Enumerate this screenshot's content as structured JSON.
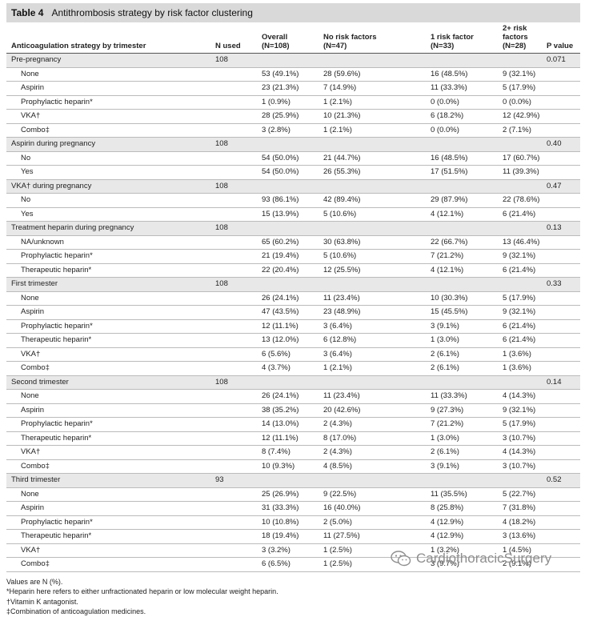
{
  "table": {
    "label": "Table 4",
    "title": "Antithrombosis strategy by risk factor clustering",
    "headers": [
      [
        "Anticoagulation strategy by trimester"
      ],
      [
        "N used"
      ],
      [
        "Overall",
        "(N=108)"
      ],
      [
        "No risk factors",
        "(N=47)"
      ],
      [
        "1 risk factor",
        "(N=33)"
      ],
      [
        "2+ risk factors",
        "(N=28)"
      ],
      [
        "P value"
      ]
    ],
    "rows": [
      {
        "section": true,
        "cells": [
          "Pre-pregnancy",
          "108",
          "",
          "",
          "",
          "",
          "0.071"
        ]
      },
      {
        "section": false,
        "cells": [
          "None",
          "",
          "53 (49.1%)",
          "28 (59.6%)",
          "16 (48.5%)",
          "9 (32.1%)",
          ""
        ]
      },
      {
        "section": false,
        "cells": [
          "Aspirin",
          "",
          "23 (21.3%)",
          "7 (14.9%)",
          "11 (33.3%)",
          "5 (17.9%)",
          ""
        ]
      },
      {
        "section": false,
        "cells": [
          "Prophylactic heparin*",
          "",
          "1 (0.9%)",
          "1 (2.1%)",
          "0 (0.0%)",
          "0 (0.0%)",
          ""
        ]
      },
      {
        "section": false,
        "cells": [
          "VKA†",
          "",
          "28 (25.9%)",
          "10 (21.3%)",
          "6 (18.2%)",
          "12 (42.9%)",
          ""
        ]
      },
      {
        "section": false,
        "cells": [
          "Combo‡",
          "",
          "3 (2.8%)",
          "1 (2.1%)",
          "0 (0.0%)",
          "2 (7.1%)",
          ""
        ]
      },
      {
        "section": true,
        "cells": [
          "Aspirin during pregnancy",
          "108",
          "",
          "",
          "",
          "",
          "0.40"
        ]
      },
      {
        "section": false,
        "cells": [
          "No",
          "",
          "54 (50.0%)",
          "21 (44.7%)",
          "16 (48.5%)",
          "17 (60.7%)",
          ""
        ]
      },
      {
        "section": false,
        "cells": [
          "Yes",
          "",
          "54 (50.0%)",
          "26 (55.3%)",
          "17 (51.5%)",
          "11 (39.3%)",
          ""
        ]
      },
      {
        "section": true,
        "cells": [
          "VKA† during pregnancy",
          "108",
          "",
          "",
          "",
          "",
          "0.47"
        ]
      },
      {
        "section": false,
        "cells": [
          "No",
          "",
          "93 (86.1%)",
          "42 (89.4%)",
          "29 (87.9%)",
          "22 (78.6%)",
          ""
        ]
      },
      {
        "section": false,
        "cells": [
          "Yes",
          "",
          "15 (13.9%)",
          "5 (10.6%)",
          "4 (12.1%)",
          "6 (21.4%)",
          ""
        ]
      },
      {
        "section": true,
        "cells": [
          "Treatment heparin during pregnancy",
          "108",
          "",
          "",
          "",
          "",
          "0.13"
        ]
      },
      {
        "section": false,
        "cells": [
          "NA/unknown",
          "",
          "65 (60.2%)",
          "30 (63.8%)",
          "22 (66.7%)",
          "13 (46.4%)",
          ""
        ]
      },
      {
        "section": false,
        "cells": [
          "Prophylactic heparin*",
          "",
          "21 (19.4%)",
          "5 (10.6%)",
          "7 (21.2%)",
          "9 (32.1%)",
          ""
        ]
      },
      {
        "section": false,
        "cells": [
          "Therapeutic heparin*",
          "",
          "22 (20.4%)",
          "12 (25.5%)",
          "4 (12.1%)",
          "6 (21.4%)",
          ""
        ]
      },
      {
        "section": true,
        "cells": [
          "First trimester",
          "108",
          "",
          "",
          "",
          "",
          "0.33"
        ]
      },
      {
        "section": false,
        "cells": [
          "None",
          "",
          "26 (24.1%)",
          "11 (23.4%)",
          "10 (30.3%)",
          "5 (17.9%)",
          ""
        ]
      },
      {
        "section": false,
        "cells": [
          "Aspirin",
          "",
          "47 (43.5%)",
          "23 (48.9%)",
          "15 (45.5%)",
          "9 (32.1%)",
          ""
        ]
      },
      {
        "section": false,
        "cells": [
          "Prophylactic heparin*",
          "",
          "12 (11.1%)",
          "3 (6.4%)",
          "3 (9.1%)",
          "6 (21.4%)",
          ""
        ]
      },
      {
        "section": false,
        "cells": [
          "Therapeutic heparin*",
          "",
          "13 (12.0%)",
          "6 (12.8%)",
          "1 (3.0%)",
          "6 (21.4%)",
          ""
        ]
      },
      {
        "section": false,
        "cells": [
          "VKA†",
          "",
          "6 (5.6%)",
          "3 (6.4%)",
          "2 (6.1%)",
          "1 (3.6%)",
          ""
        ]
      },
      {
        "section": false,
        "cells": [
          "Combo‡",
          "",
          "4 (3.7%)",
          "1 (2.1%)",
          "2 (6.1%)",
          "1 (3.6%)",
          ""
        ]
      },
      {
        "section": true,
        "cells": [
          "Second trimester",
          "108",
          "",
          "",
          "",
          "",
          "0.14"
        ]
      },
      {
        "section": false,
        "cells": [
          "None",
          "",
          "26 (24.1%)",
          "11 (23.4%)",
          "11 (33.3%)",
          "4 (14.3%)",
          ""
        ]
      },
      {
        "section": false,
        "cells": [
          "Aspirin",
          "",
          "38 (35.2%)",
          "20 (42.6%)",
          "9 (27.3%)",
          "9 (32.1%)",
          ""
        ]
      },
      {
        "section": false,
        "cells": [
          "Prophylactic heparin*",
          "",
          "14 (13.0%)",
          "2 (4.3%)",
          "7 (21.2%)",
          "5 (17.9%)",
          ""
        ]
      },
      {
        "section": false,
        "cells": [
          "Therapeutic heparin*",
          "",
          "12 (11.1%)",
          "8 (17.0%)",
          "1 (3.0%)",
          "3 (10.7%)",
          ""
        ]
      },
      {
        "section": false,
        "cells": [
          "VKA†",
          "",
          "8 (7.4%)",
          "2 (4.3%)",
          "2 (6.1%)",
          "4 (14.3%)",
          ""
        ]
      },
      {
        "section": false,
        "cells": [
          "Combo‡",
          "",
          "10 (9.3%)",
          "4 (8.5%)",
          "3 (9.1%)",
          "3 (10.7%)",
          ""
        ]
      },
      {
        "section": true,
        "cells": [
          "Third trimester",
          "93",
          "",
          "",
          "",
          "",
          "0.52"
        ]
      },
      {
        "section": false,
        "cells": [
          "None",
          "",
          "25 (26.9%)",
          "9 (22.5%)",
          "11 (35.5%)",
          "5 (22.7%)",
          ""
        ]
      },
      {
        "section": false,
        "cells": [
          "Aspirin",
          "",
          "31 (33.3%)",
          "16 (40.0%)",
          "8 (25.8%)",
          "7 (31.8%)",
          ""
        ]
      },
      {
        "section": false,
        "cells": [
          "Prophylactic heparin*",
          "",
          "10 (10.8%)",
          "2 (5.0%)",
          "4 (12.9%)",
          "4 (18.2%)",
          ""
        ]
      },
      {
        "section": false,
        "cells": [
          "Therapeutic heparin*",
          "",
          "18 (19.4%)",
          "11 (27.5%)",
          "4 (12.9%)",
          "3 (13.6%)",
          ""
        ]
      },
      {
        "section": false,
        "cells": [
          "VKA†",
          "",
          "3 (3.2%)",
          "1 (2.5%)",
          "1 (3.2%)",
          "1 (4.5%)",
          ""
        ]
      },
      {
        "section": false,
        "cells": [
          "Combo‡",
          "",
          "6 (6.5%)",
          "1 (2.5%)",
          "3 (9.7%)",
          "2 (9.1%)",
          ""
        ]
      }
    ]
  },
  "footnotes": [
    "Values are N (%).",
    "*Heparin here refers to either unfractionated heparin or low molecular weight heparin.",
    "†Vitamin K antagonist.",
    "‡Combination of anticoagulation medicines."
  ],
  "watermark": {
    "text": "CardiothoracicSurgery",
    "icon": "wechat-icon"
  },
  "colors": {
    "title_bar": "#d9d9d9",
    "section_row": "#e8e8e8",
    "text": "#222222",
    "watermark": "#8f8f8f"
  }
}
